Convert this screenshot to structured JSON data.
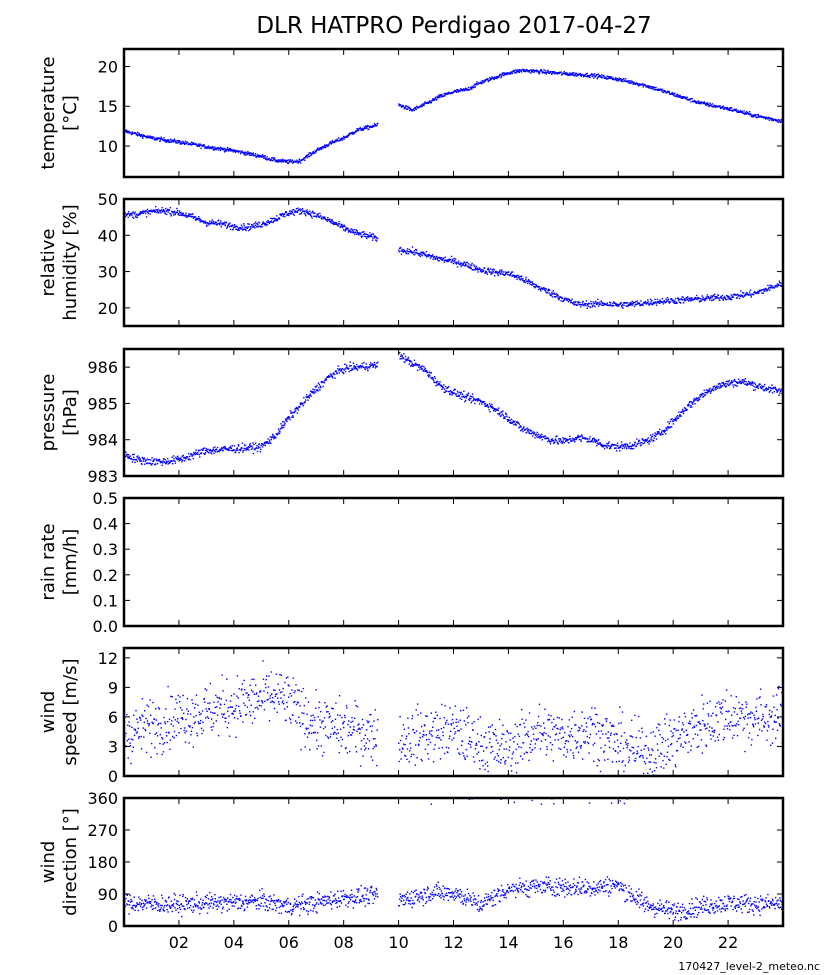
{
  "title": "DLR HATPRO  Perdigao  2017-04-27",
  "footer": "170427_level-2_meteo.nc",
  "x_tick_labels": [
    "02",
    "04",
    "06",
    "08",
    "10",
    "12",
    "14",
    "16",
    "18",
    "20",
    "22"
  ],
  "colors": {
    "data": "#0000ff",
    "axes": "#000000"
  },
  "chart_data": [
    {
      "type": "scatter",
      "ylabel": [
        "temperature",
        "[°C]"
      ],
      "xlim": [
        0,
        24
      ],
      "ylim": [
        6.1,
        22.2
      ],
      "yticks": [
        10,
        15,
        20
      ],
      "noise": 0.12,
      "series": [
        {
          "name": "temperature",
          "x": [
            0,
            1,
            2,
            3,
            4,
            5,
            5.5,
            6,
            6.4,
            7,
            7.5,
            8,
            8.5,
            9.2,
            10,
            10.5,
            11,
            11.5,
            12,
            12.5,
            13,
            13.5,
            14,
            14.5,
            15,
            16,
            17,
            18,
            18.5,
            19,
            20,
            21,
            22,
            23,
            24
          ],
          "y": [
            11.9,
            11.0,
            10.5,
            9.9,
            9.4,
            8.7,
            8.2,
            8.0,
            8.1,
            9.4,
            10.3,
            11.0,
            12.0,
            12.6,
            15.2,
            14.5,
            15.3,
            16.2,
            16.8,
            17.1,
            18.0,
            18.6,
            19.2,
            19.5,
            19.4,
            19.1,
            18.9,
            18.4,
            18.0,
            17.6,
            16.5,
            15.4,
            14.7,
            13.8,
            13.1
          ]
        }
      ],
      "gap": [
        9.25,
        10.0
      ]
    },
    {
      "type": "scatter",
      "ylabel": [
        "relative",
        "humidity [%]"
      ],
      "xlim": [
        0,
        24
      ],
      "ylim": [
        15,
        50
      ],
      "yticks": [
        20,
        30,
        40,
        50
      ],
      "noise": 0.45,
      "series": [
        {
          "name": "relative humidity",
          "x": [
            0,
            0.5,
            1,
            1.5,
            2,
            2.5,
            3,
            3.5,
            4,
            4.5,
            5,
            5.5,
            6,
            6.5,
            7,
            7.5,
            8,
            8.5,
            9.2,
            10,
            10.5,
            11,
            11.5,
            12,
            12.5,
            13,
            13.5,
            14,
            14.5,
            15,
            15.5,
            16,
            16.5,
            17,
            17.5,
            18,
            18.5,
            19,
            19.5,
            20,
            21,
            22,
            23,
            24
          ],
          "y": [
            45.5,
            45.8,
            46.5,
            46.8,
            46.2,
            45.0,
            43.5,
            43.2,
            42.4,
            42.2,
            43.0,
            44.5,
            46.2,
            46.8,
            45.5,
            44.0,
            42.0,
            40.5,
            39.2,
            36.0,
            35.5,
            34.5,
            33.5,
            32.8,
            31.8,
            30.5,
            29.8,
            29.5,
            28.0,
            26.0,
            24.3,
            22.5,
            21.0,
            21.0,
            21.2,
            20.8,
            21.0,
            21.4,
            21.8,
            22.0,
            22.5,
            23.0,
            24.0,
            26.8
          ]
        }
      ],
      "gap": [
        9.25,
        10.0
      ]
    },
    {
      "type": "scatter",
      "ylabel": [
        "pressure",
        "[hPa]"
      ],
      "xlim": [
        0,
        24
      ],
      "ylim": [
        983.0,
        986.5
      ],
      "yticks": [
        983,
        984,
        985,
        986
      ],
      "noise": 0.055,
      "series": [
        {
          "name": "pressure",
          "x": [
            0,
            0.5,
            1,
            1.5,
            2,
            3,
            4,
            5,
            5.5,
            6,
            6.5,
            7,
            7.5,
            8,
            8.5,
            9.2,
            10,
            10.5,
            11,
            11.5,
            12,
            12.5,
            13,
            13.5,
            14,
            14.5,
            15,
            15.5,
            16,
            16.5,
            17,
            17.5,
            18,
            18.5,
            19,
            19.5,
            20,
            20.5,
            21,
            21.5,
            22,
            22.5,
            23,
            24
          ],
          "y": [
            983.6,
            983.45,
            983.4,
            983.4,
            983.45,
            983.7,
            983.75,
            983.8,
            984.1,
            984.6,
            985.0,
            985.4,
            985.75,
            985.95,
            986.0,
            986.05,
            986.35,
            986.1,
            985.9,
            985.5,
            985.3,
            985.15,
            985.05,
            984.85,
            984.6,
            984.3,
            984.15,
            984.0,
            983.95,
            984.05,
            984.0,
            983.85,
            983.8,
            983.85,
            983.95,
            984.15,
            984.5,
            984.9,
            985.2,
            985.45,
            985.55,
            985.6,
            985.5,
            985.3
          ]
        }
      ],
      "gap": [
        9.25,
        10.0
      ]
    },
    {
      "type": "scatter",
      "ylabel": [
        "rain rate",
        "[mm/h]"
      ],
      "xlim": [
        0,
        24
      ],
      "ylim": [
        0.0,
        0.5
      ],
      "yticks": [
        0.0,
        0.1,
        0.2,
        0.3,
        0.4,
        0.5
      ],
      "series": []
    },
    {
      "type": "scatter",
      "ylabel": [
        "wind",
        "speed [m/s]"
      ],
      "xlim": [
        0,
        24
      ],
      "ylim": [
        0,
        13
      ],
      "yticks": [
        0,
        3,
        6,
        9,
        12
      ],
      "noise": 1.4,
      "series": [
        {
          "name": "wind speed",
          "x": [
            0,
            1,
            2,
            3,
            4,
            5,
            5.5,
            6,
            6.5,
            7,
            8,
            9.2,
            10,
            11,
            12,
            13,
            14,
            15,
            16,
            17,
            18,
            19,
            20,
            21,
            22,
            23,
            24
          ],
          "y": [
            4.2,
            5.2,
            6.0,
            6.5,
            7.2,
            7.8,
            8.2,
            7.5,
            6.2,
            5.2,
            4.8,
            4.2,
            3.6,
            4.2,
            4.6,
            3.2,
            2.6,
            4.5,
            4.0,
            4.8,
            3.2,
            2.4,
            3.6,
            5.2,
            6.2,
            5.8,
            6.0
          ]
        }
      ],
      "gap": [
        9.25,
        10.0
      ]
    },
    {
      "type": "scatter",
      "ylabel": [
        "wind",
        "direction [°]"
      ],
      "xlim": [
        0,
        24
      ],
      "ylim": [
        0,
        360
      ],
      "yticks": [
        0,
        90,
        180,
        270,
        360
      ],
      "noise": 13,
      "series": [
        {
          "name": "wind direction",
          "x": [
            0,
            1,
            2,
            3,
            4,
            5,
            6,
            7,
            8,
            9.2,
            10,
            11,
            12,
            13,
            14,
            15,
            16,
            17,
            18,
            19,
            20,
            21,
            22,
            23,
            24
          ],
          "y": [
            65,
            62,
            60,
            64,
            66,
            70,
            55,
            65,
            80,
            85,
            70,
            92,
            95,
            60,
            105,
            110,
            110,
            108,
            115,
            60,
            40,
            55,
            65,
            62,
            62
          ]
        }
      ],
      "gap": [
        9.25,
        10.0
      ],
      "wrap_near_360": true
    }
  ]
}
